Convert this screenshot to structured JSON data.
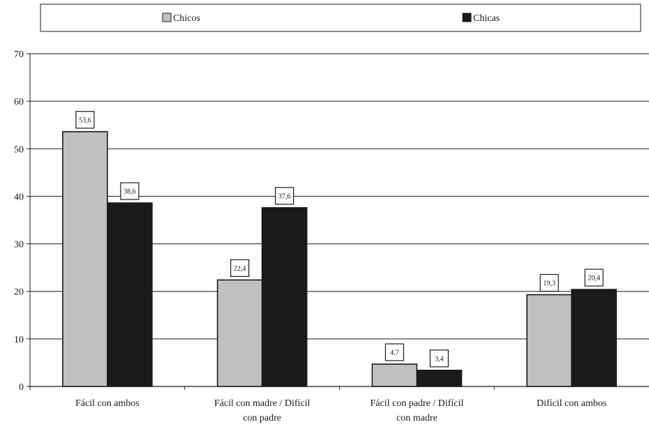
{
  "chart_data": {
    "type": "bar",
    "title": "",
    "xlabel": "",
    "ylabel": "",
    "categories": [
      [
        "Fácil con ambos"
      ],
      [
        "Fácil con madre / Difícil",
        "con padre"
      ],
      [
        "Fácil con padre / Difícil",
        "con madre"
      ],
      [
        "Difícil con ambos"
      ]
    ],
    "series": [
      {
        "name": "Chicos",
        "color": "#c0c0c0",
        "values": [
          53.6,
          22.4,
          4.7,
          19.3
        ],
        "labels": [
          "53,6",
          "22,4",
          "4,7",
          "19,3"
        ]
      },
      {
        "name": "Chicas",
        "color": "#1a1a1a",
        "values": [
          38.6,
          37.6,
          3.4,
          20.4
        ],
        "labels": [
          "38,6",
          "37,6",
          "3,4",
          "20,4"
        ]
      }
    ],
    "ylim": [
      0,
      70
    ],
    "yticks": [
      0,
      10,
      20,
      30,
      40,
      50,
      60,
      70
    ],
    "grid": true,
    "legend_position": "top"
  }
}
